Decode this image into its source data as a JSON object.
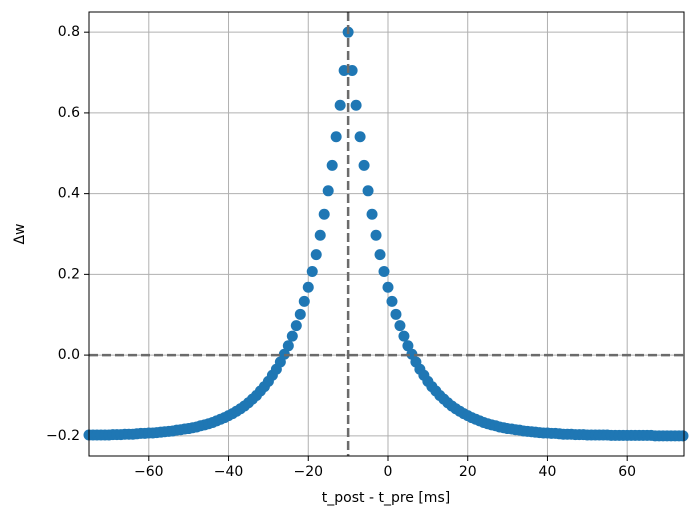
{
  "chart_data": {
    "type": "scatter",
    "xlabel": "t_post - t_pre [ms]",
    "ylabel": "Δw",
    "color": "#1f77b4",
    "grid": true,
    "x": [
      -75,
      -74,
      -73,
      -72,
      -71,
      -70,
      -69,
      -68,
      -67,
      -66,
      -65,
      -64,
      -63,
      -62,
      -61,
      -60,
      -59,
      -58,
      -57,
      -56,
      -55,
      -54,
      -53,
      -52,
      -51,
      -50,
      -49,
      -48,
      -47,
      -46,
      -45,
      -44,
      -43,
      -42,
      -41,
      -40,
      -39,
      -38,
      -37,
      -36,
      -35,
      -34,
      -33,
      -32,
      -31,
      -30,
      -29,
      -28,
      -27,
      -26,
      -25,
      -24,
      -23,
      -22,
      -21,
      -20,
      -19,
      -18,
      -17,
      -16,
      -15,
      -14,
      -13,
      -12,
      -11,
      -10,
      -9,
      -8,
      -7,
      -6,
      -5,
      -4,
      -3,
      -2,
      -1,
      0,
      1,
      2,
      3,
      4,
      5,
      6,
      7,
      8,
      9,
      10,
      11,
      12,
      13,
      14,
      15,
      16,
      17,
      18,
      19,
      20,
      21,
      22,
      23,
      24,
      25,
      26,
      27,
      28,
      29,
      30,
      31,
      32,
      33,
      34,
      35,
      36,
      37,
      38,
      39,
      40,
      41,
      42,
      43,
      44,
      45,
      46,
      47,
      48,
      49,
      50,
      51,
      52,
      53,
      54,
      55,
      56,
      57,
      58,
      59,
      60,
      61,
      62,
      63,
      64,
      65,
      66,
      67,
      68,
      69,
      70,
      71,
      72,
      73,
      74
    ],
    "values": [
      -0.198,
      -0.198,
      -0.198,
      -0.198,
      -0.198,
      -0.198,
      -0.197,
      -0.197,
      -0.197,
      -0.196,
      -0.196,
      -0.196,
      -0.195,
      -0.194,
      -0.194,
      -0.193,
      -0.193,
      -0.192,
      -0.191,
      -0.19,
      -0.189,
      -0.188,
      -0.186,
      -0.185,
      -0.183,
      -0.182,
      -0.18,
      -0.178,
      -0.175,
      -0.173,
      -0.17,
      -0.167,
      -0.163,
      -0.159,
      -0.155,
      -0.15,
      -0.145,
      -0.139,
      -0.133,
      -0.126,
      -0.118,
      -0.109,
      -0.1,
      -0.089,
      -0.078,
      -0.065,
      -0.05,
      -0.035,
      -0.017,
      0.002,
      0.023,
      0.047,
      0.073,
      0.101,
      0.133,
      0.168,
      0.207,
      0.249,
      0.297,
      0.349,
      0.407,
      0.47,
      0.541,
      0.619,
      0.705,
      0.8,
      0.705,
      0.619,
      0.541,
      0.47,
      0.407,
      0.349,
      0.297,
      0.249,
      0.207,
      0.168,
      0.133,
      0.101,
      0.073,
      0.047,
      0.023,
      0.002,
      -0.017,
      -0.035,
      -0.05,
      -0.065,
      -0.078,
      -0.089,
      -0.1,
      -0.109,
      -0.118,
      -0.126,
      -0.133,
      -0.139,
      -0.145,
      -0.15,
      -0.155,
      -0.159,
      -0.163,
      -0.167,
      -0.17,
      -0.173,
      -0.175,
      -0.178,
      -0.18,
      -0.182,
      -0.183,
      -0.185,
      -0.186,
      -0.188,
      -0.189,
      -0.19,
      -0.191,
      -0.192,
      -0.193,
      -0.193,
      -0.194,
      -0.194,
      -0.195,
      -0.196,
      -0.196,
      -0.196,
      -0.197,
      -0.197,
      -0.197,
      -0.198,
      -0.198,
      -0.198,
      -0.198,
      -0.198,
      -0.198,
      -0.199,
      -0.199,
      -0.199,
      -0.199,
      -0.199,
      -0.199,
      -0.199,
      -0.199,
      -0.199,
      -0.199,
      -0.199,
      -0.2,
      -0.2,
      -0.2,
      -0.2,
      -0.2,
      -0.2,
      -0.2,
      -0.2
    ],
    "xlim": [
      -75,
      74.25
    ],
    "ylim": [
      -0.25,
      0.85
    ],
    "xticks": [
      {
        "value": -60,
        "label": "−60"
      },
      {
        "value": -40,
        "label": "−40"
      },
      {
        "value": -20,
        "label": "−20"
      },
      0,
      20,
      40,
      60
    ],
    "yticks": [
      {
        "value": -0.2,
        "label": "−0.2"
      },
      {
        "value": 0,
        "label": "0.0"
      },
      0.2,
      0.4,
      0.6,
      0.8
    ],
    "hlines": [
      0
    ],
    "vlines": [
      -10
    ],
    "line_color": "#6b6b6b"
  }
}
